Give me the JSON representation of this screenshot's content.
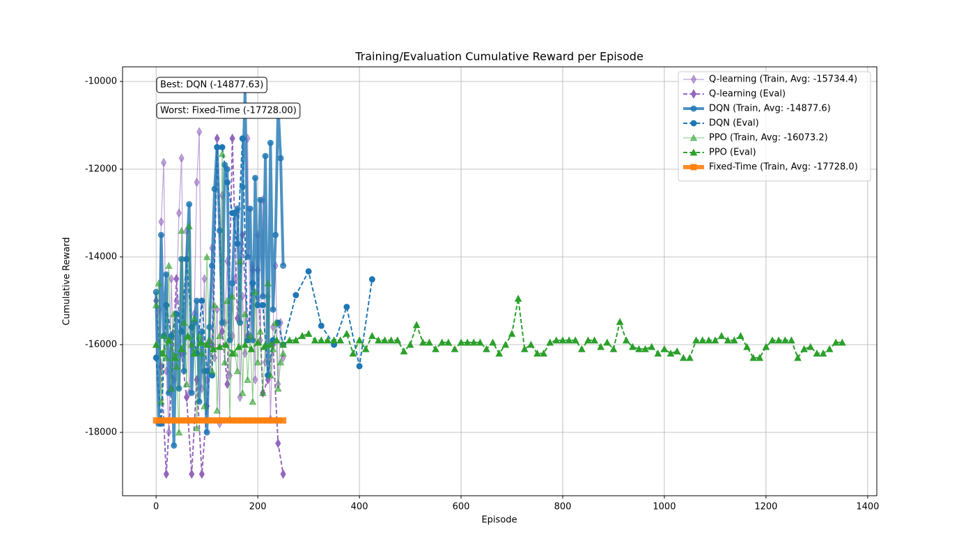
{
  "chart_data": {
    "type": "line",
    "title": "Training/Evaluation Cumulative Reward per Episode",
    "x_label": "Episode",
    "y_label": "Cumulative Reward",
    "xlim": [
      -66,
      1418
    ],
    "ylim": [
      -19444,
      -9667
    ],
    "xticks": [
      0,
      200,
      400,
      600,
      800,
      1000,
      1200,
      1400
    ],
    "yticks": [
      -10000,
      -12000,
      -14000,
      -16000,
      -18000
    ],
    "grid": true,
    "legend": "upper right",
    "annotations": [
      "Best: DQN (-14877.63)",
      "Worst: Fixed-Time (-17728.00)"
    ],
    "series": [
      {
        "name": "Q-learning (Train, Avg: -15734.4)",
        "color": "#9467bd",
        "marker": "diamond",
        "linestyle": "solid",
        "linewidth": 1.2,
        "alpha": 0.6,
        "x": [
          0,
          5,
          10,
          15,
          20,
          25,
          30,
          35,
          40,
          45,
          50,
          55,
          60,
          65,
          70,
          75,
          80,
          85,
          90,
          95,
          100,
          105,
          110,
          115,
          120,
          125,
          130,
          135,
          140,
          145,
          150,
          155,
          160,
          165,
          170,
          175,
          180,
          185,
          190,
          195,
          200,
          205,
          210,
          215,
          220,
          225,
          230,
          235,
          240,
          245,
          250
        ],
        "values": [
          -16300,
          -15200,
          -13200,
          -11850,
          -16600,
          -18000,
          -14500,
          -16800,
          -15000,
          -13000,
          -11750,
          -16200,
          -13400,
          -17100,
          -16000,
          -15300,
          -12300,
          -11150,
          -17000,
          -14500,
          -16800,
          -15900,
          -13800,
          -16300,
          -15200,
          -17800,
          -12600,
          -15500,
          -14100,
          -16700,
          -15800,
          -14500,
          -13000,
          -17200,
          -14900,
          -16200,
          -11300,
          -15800,
          -14200,
          -16800,
          -13500,
          -15900,
          -12700,
          -16400,
          -14900,
          -17700,
          -15600,
          -14200,
          -16900,
          -15500,
          -16300
        ]
      },
      {
        "name": "Q-learning (Eval)",
        "color": "#9467bd",
        "marker": "diamond",
        "linestyle": "dashed",
        "linewidth": 2,
        "alpha": 1,
        "x": [
          0,
          10,
          20,
          30,
          40,
          50,
          60,
          70,
          80,
          90,
          100,
          110,
          120,
          130,
          140,
          150,
          160,
          170,
          180,
          190,
          200,
          210,
          220,
          230,
          240,
          250
        ],
        "values": [
          -15000,
          -16500,
          -18950,
          -17000,
          -14500,
          -16200,
          -17200,
          -18950,
          -16800,
          -18950,
          -17400,
          -16000,
          -11300,
          -15700,
          -16900,
          -11300,
          -15400,
          -13500,
          -15800,
          -14300,
          -14300,
          -17100,
          -16800,
          -16000,
          -18250,
          -18950
        ]
      },
      {
        "name": "DQN (Train, Avg: -14877.6)",
        "color": "#1f77b4",
        "marker": "circle",
        "linestyle": "solid",
        "linewidth": 4,
        "alpha": 0.8,
        "x": [
          0,
          5,
          10,
          15,
          20,
          25,
          30,
          35,
          40,
          45,
          50,
          55,
          60,
          65,
          70,
          75,
          80,
          85,
          90,
          95,
          100,
          105,
          110,
          115,
          120,
          125,
          130,
          135,
          140,
          145,
          150,
          155,
          160,
          165,
          170,
          175,
          180,
          185,
          190,
          195,
          200,
          205,
          210,
          215,
          220,
          225,
          230,
          235,
          240,
          245,
          250
        ],
        "values": [
          -14800,
          -17800,
          -13500,
          -15800,
          -14400,
          -17100,
          -15800,
          -18300,
          -15300,
          -17000,
          -14050,
          -16600,
          -14050,
          -12800,
          -17100,
          -15500,
          -15000,
          -17300,
          -15700,
          -16600,
          -18000,
          -15600,
          -14200,
          -12450,
          -11500,
          -13400,
          -15500,
          -11900,
          -12000,
          -15900,
          -14600,
          -13000,
          -12900,
          -15500,
          -12400,
          -10200,
          -14000,
          -12900,
          -15900,
          -12200,
          -15100,
          -12700,
          -14900,
          -11700,
          -16700,
          -11400,
          -15200,
          -13500,
          -10550,
          -11750,
          -14200
        ]
      },
      {
        "name": "DQN (Eval)",
        "color": "#1f77b4",
        "marker": "circle",
        "linestyle": "dashed",
        "linewidth": 2,
        "alpha": 1,
        "x": [
          0,
          10,
          20,
          30,
          40,
          50,
          60,
          70,
          80,
          90,
          100,
          110,
          120,
          130,
          140,
          150,
          160,
          170,
          180,
          190,
          200,
          210,
          220,
          230,
          240,
          250,
          275,
          300,
          325,
          350,
          375,
          400,
          425
        ],
        "values": [
          -16300,
          -17800,
          -15100,
          -15800,
          -15300,
          -15700,
          -14050,
          -15600,
          -16200,
          -15000,
          -16600,
          -16700,
          -11500,
          -11500,
          -12300,
          -13000,
          -13700,
          -11300,
          -15900,
          -14600,
          -15100,
          -15100,
          -16700,
          -15900,
          -15500,
          -16000,
          -14870,
          -14330,
          -15570,
          -16000,
          -15140,
          -16490,
          -14510
        ]
      },
      {
        "name": "PPO (Train, Avg: -16073.2)",
        "color": "#2ca02c",
        "marker": "triangle",
        "linestyle": "solid",
        "linewidth": 1,
        "alpha": 0.6,
        "x": [
          0,
          5,
          10,
          15,
          20,
          25,
          30,
          35,
          40,
          45,
          50,
          55,
          60,
          65,
          70,
          75,
          80,
          85,
          90,
          95,
          100,
          105,
          110,
          115,
          120,
          125,
          130,
          135,
          140,
          145,
          150,
          155,
          160,
          165,
          170,
          175,
          180,
          185,
          190,
          195,
          200,
          205,
          210,
          215,
          220,
          225,
          230,
          235,
          240,
          245,
          250
        ],
        "values": [
          -15100,
          -14600,
          -17300,
          -15800,
          -16300,
          -14200,
          -17000,
          -15300,
          -16500,
          -18000,
          -13400,
          -15500,
          -16900,
          -13300,
          -16000,
          -15400,
          -17900,
          -15800,
          -16200,
          -17400,
          -14000,
          -15900,
          -16600,
          -15100,
          -17500,
          -15800,
          -11650,
          -16400,
          -15000,
          -17700,
          -14900,
          -16200,
          -16600,
          -14100,
          -17100,
          -15300,
          -16800,
          -15800,
          -17300,
          -14800,
          -16400,
          -15700,
          -17100,
          -16000,
          -14600,
          -16700,
          -16100,
          -15500,
          -17000,
          -16400,
          -16200
        ]
      },
      {
        "name": "PPO (Eval)",
        "color": "#2ca02c",
        "marker": "triangle",
        "linestyle": "dashed",
        "linewidth": 2,
        "alpha": 1,
        "x": [
          0,
          12.5,
          25,
          37.5,
          50,
          62.5,
          75,
          87.5,
          100,
          112.5,
          125,
          137.5,
          150,
          162.5,
          175,
          187.5,
          200,
          212.5,
          225,
          237.5,
          250,
          262.5,
          275,
          287.5,
          300,
          312.5,
          325,
          337.5,
          350,
          362.5,
          375,
          387.5,
          400,
          412.5,
          425,
          437.5,
          450,
          462.5,
          475,
          487.5,
          500,
          512.5,
          525,
          537.5,
          550,
          562.5,
          575,
          587.5,
          600,
          612.5,
          625,
          637.5,
          650,
          662.5,
          675,
          687.5,
          700,
          712.5,
          725,
          737.5,
          750,
          762.5,
          775,
          787.5,
          800,
          812.5,
          825,
          837.5,
          850,
          862.5,
          875,
          887.5,
          900,
          912.5,
          925,
          937.5,
          950,
          962.5,
          975,
          987.5,
          1000,
          1012.5,
          1025,
          1037.5,
          1050,
          1062.5,
          1075,
          1087.5,
          1100,
          1112.5,
          1125,
          1137.5,
          1150,
          1162.5,
          1175,
          1187.5,
          1200,
          1212.5,
          1225,
          1237.5,
          1250,
          1262.5,
          1275,
          1287.5,
          1300,
          1312.5,
          1325,
          1337.5,
          1350
        ],
        "values": [
          -16000,
          -16200,
          -15900,
          -16300,
          -16100,
          -15800,
          -16200,
          -15950,
          -16000,
          -16100,
          -16050,
          -16000,
          -16200,
          -16050,
          -16000,
          -16100,
          -15950,
          -16050,
          -16000,
          -15900,
          -16000,
          -15900,
          -15900,
          -15800,
          -15750,
          -15900,
          -15900,
          -15900,
          -15900,
          -15900,
          -15750,
          -16200,
          -15900,
          -16100,
          -15800,
          -15900,
          -15900,
          -15900,
          -15900,
          -16150,
          -16000,
          -15550,
          -15950,
          -15950,
          -16100,
          -15950,
          -15950,
          -16100,
          -15950,
          -15950,
          -15950,
          -15950,
          -16100,
          -15950,
          -16200,
          -16000,
          -15750,
          -14950,
          -16100,
          -16000,
          -16200,
          -16200,
          -15950,
          -15900,
          -15900,
          -15900,
          -15900,
          -16100,
          -15900,
          -15900,
          -16050,
          -15950,
          -16100,
          -15480,
          -15900,
          -16050,
          -16100,
          -16100,
          -16050,
          -16200,
          -16100,
          -16200,
          -16150,
          -16300,
          -16300,
          -15900,
          -15900,
          -15900,
          -15900,
          -15800,
          -15900,
          -15900,
          -15800,
          -16050,
          -16300,
          -16300,
          -16050,
          -15900,
          -15900,
          -15900,
          -15900,
          -16300,
          -16100,
          -16050,
          -16200,
          -16200,
          -16100,
          -15950,
          -15950
        ]
      },
      {
        "name": "Fixed-Time (Train, Avg: -17728.0)",
        "color": "#ff7f0e",
        "marker": "square",
        "linestyle": "solid",
        "linewidth": 6,
        "alpha": 0.9,
        "x": [
          0,
          10,
          20,
          30,
          40,
          50,
          60,
          70,
          80,
          90,
          100,
          110,
          120,
          130,
          140,
          150,
          160,
          170,
          180,
          190,
          200,
          210,
          220,
          230,
          240,
          250
        ],
        "values": [
          -17728,
          -17728,
          -17728,
          -17728,
          -17728,
          -17728,
          -17728,
          -17728,
          -17728,
          -17728,
          -17728,
          -17728,
          -17728,
          -17728,
          -17728,
          -17728,
          -17728,
          -17728,
          -17728,
          -17728,
          -17728,
          -17728,
          -17728,
          -17728,
          -17728,
          -17728
        ]
      }
    ]
  }
}
